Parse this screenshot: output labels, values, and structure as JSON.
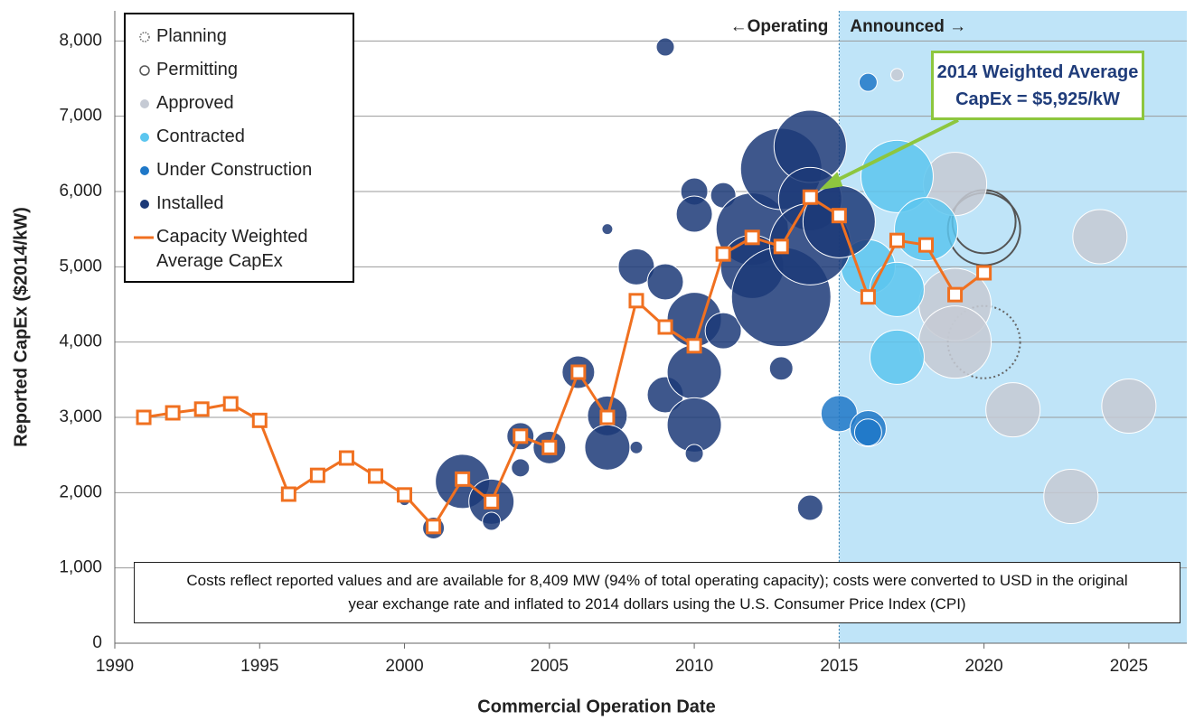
{
  "chart_data": {
    "type": "bubble",
    "x_label": "Commercial Operation Date",
    "y_label": "Reported CapEx ($2014/kW)",
    "xlim": [
      1990,
      2027
    ],
    "xticks": [
      1990,
      1995,
      2000,
      2005,
      2010,
      2015,
      2020,
      2025
    ],
    "ylim": [
      0,
      8400
    ],
    "yticks": [
      0,
      {
        "value": 1000,
        "label": "1,000"
      },
      {
        "value": 2000,
        "label": "2,000"
      },
      {
        "value": 3000,
        "label": "3,000"
      },
      {
        "value": 4000,
        "label": "4,000"
      },
      {
        "value": 5000,
        "label": "5,000"
      },
      {
        "value": 6000,
        "label": "6,000"
      },
      {
        "value": 7000,
        "label": "7,000"
      },
      {
        "value": 8000,
        "label": "8,000"
      }
    ],
    "grid": true,
    "region": {
      "from": 2015,
      "to": 2027,
      "color": "#bfe4f8",
      "left_label": "←Operating",
      "right_label": "Announced →"
    },
    "annotation": {
      "lines": [
        "2014 Weighted Average",
        "CapEx = $5,925/kW"
      ],
      "x": 2014,
      "y": 5925,
      "color": "#8dc63f"
    },
    "note": "Costs reflect reported values and are available for 8,409 MW (94% of total operating capacity); costs were converted to USD in the original year exchange rate and inflated to 2014 dollars using the U.S. Consumer Price Index (CPI)",
    "series": [
      {
        "name": "Planning",
        "style": "dotted",
        "color": "#666666",
        "x": [
          2020
        ],
        "values": [
          4000
        ],
        "sizes": [
          400
        ]
      },
      {
        "name": "Permitting",
        "style": "outline",
        "color": "#555555",
        "x": [
          2020,
          2020
        ],
        "values": [
          5500,
          5600
        ],
        "sizes": [
          400,
          306
        ]
      },
      {
        "name": "Approved",
        "style": "filled",
        "color": "#c5cad4",
        "x": [
          2019,
          2019,
          2019,
          2021,
          2023,
          2024,
          2025,
          2017
        ],
        "values": [
          6100,
          4500,
          4000,
          3100,
          1950,
          5400,
          3150,
          7550
        ],
        "sizes": [
          306,
          400,
          400,
          225,
          225,
          225,
          225,
          12
        ]
      },
      {
        "name": "Contracted",
        "style": "filled",
        "color": "#5cc6ef",
        "x": [
          2017,
          2017,
          2018,
          2016,
          2017
        ],
        "values": [
          6200,
          3800,
          5500,
          5000,
          4700
        ],
        "sizes": [
          400,
          225,
          306,
          225,
          225
        ]
      },
      {
        "name": "Under Construction",
        "style": "filled",
        "color": "#1f78c8",
        "x": [
          2016,
          2015,
          2016,
          2016
        ],
        "values": [
          7450,
          3050,
          2850,
          2800
        ],
        "sizes": [
          25,
          100,
          100,
          56
        ]
      },
      {
        "name": "Installed",
        "style": "filled",
        "color": "#1c3a78",
        "x": [
          2009,
          2002,
          2003,
          2001,
          2003,
          2004,
          2004,
          2005,
          2006,
          2007,
          2007,
          2007,
          2008,
          2008,
          2009,
          2009,
          2010,
          2010,
          2010,
          2010,
          2010,
          2010,
          2011,
          2011,
          2012,
          2012,
          2013,
          2013,
          2013,
          2014,
          2014,
          2014,
          2014,
          2015,
          2000,
          1996
        ],
        "values": [
          7920,
          2150,
          1880,
          1530,
          1620,
          2750,
          2330,
          2600,
          3600,
          3020,
          2600,
          5500,
          5000,
          2600,
          4800,
          3300,
          4300,
          3600,
          2900,
          6000,
          2520,
          5700,
          5950,
          4150,
          5500,
          5000,
          6300,
          4600,
          3650,
          6600,
          5900,
          5300,
          1800,
          5600,
          1900,
          2000
        ],
        "sizes": [
          25,
          225,
          156,
          36,
          25,
          56,
          25,
          81,
          81,
          121,
          156,
          9,
          100,
          12,
          100,
          100,
          225,
          225,
          225,
          56,
          25,
          100,
          49,
          100,
          400,
          306,
          506,
          756,
          42,
          400,
          306,
          506,
          49,
          400,
          9,
          6
        ]
      },
      {
        "name": "Capacity Weighted Average CapEx",
        "style": "line",
        "color": "#f07020",
        "x": [
          1991,
          1992,
          1993,
          1994,
          1995,
          1996,
          1997,
          1998,
          1999,
          2000,
          2001,
          2002,
          2003,
          2004,
          2005,
          2006,
          2007,
          2008,
          2009,
          2010,
          2011,
          2012,
          2013,
          2014,
          2015,
          2016,
          2017,
          2018,
          2019,
          2020
        ],
        "values": [
          3000,
          3060,
          3110,
          3180,
          2960,
          1980,
          2230,
          2460,
          2220,
          1970,
          1550,
          2180,
          1880,
          2750,
          2600,
          3600,
          3000,
          4550,
          4200,
          3950,
          5170,
          5390,
          5270,
          5925,
          5680,
          4600,
          5350,
          5290,
          4630,
          4920
        ]
      }
    ]
  }
}
